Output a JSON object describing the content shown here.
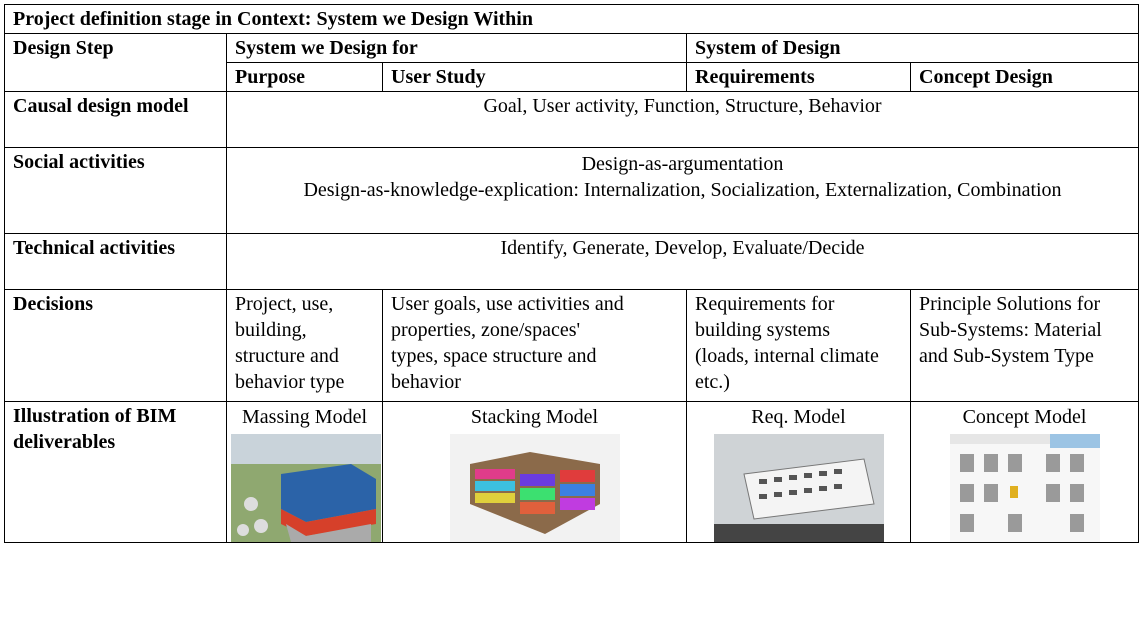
{
  "title": "Project definition stage in Context: System we Design Within",
  "header": {
    "design_step": "Design Step",
    "groups": [
      "System we Design for",
      "System of Design"
    ],
    "steps": [
      "Purpose",
      "User Study",
      "Requirements",
      "Concept Design"
    ]
  },
  "rows": [
    {
      "label": "Causal design model",
      "lines": [
        "Goal, User activity, Function, Structure, Behavior"
      ]
    },
    {
      "label": "Social activities",
      "lines": [
        "Design-as-argumentation",
        "Design-as-knowledge-explication: Internalization, Socialization, Externalization, Combination"
      ]
    },
    {
      "label": "Technical activities",
      "lines": [
        "Identify, Generate, Develop, Evaluate/Decide"
      ]
    }
  ],
  "decisions": {
    "label": "Decisions",
    "cells": [
      "Project, use, building, structure and behavior type",
      "User goals, use activities and properties, zone/spaces' types, space structure and behavior",
      "Requirements for building systems (loads, internal climate etc.)",
      "Principle Solutions for Sub-Systems: Material and Sub-System Type"
    ]
  },
  "illustration": {
    "label": "Illustration of BIM deliverables",
    "captions": [
      "Massing Model",
      "Stacking Model",
      "Req. Model",
      "Concept Model"
    ]
  }
}
